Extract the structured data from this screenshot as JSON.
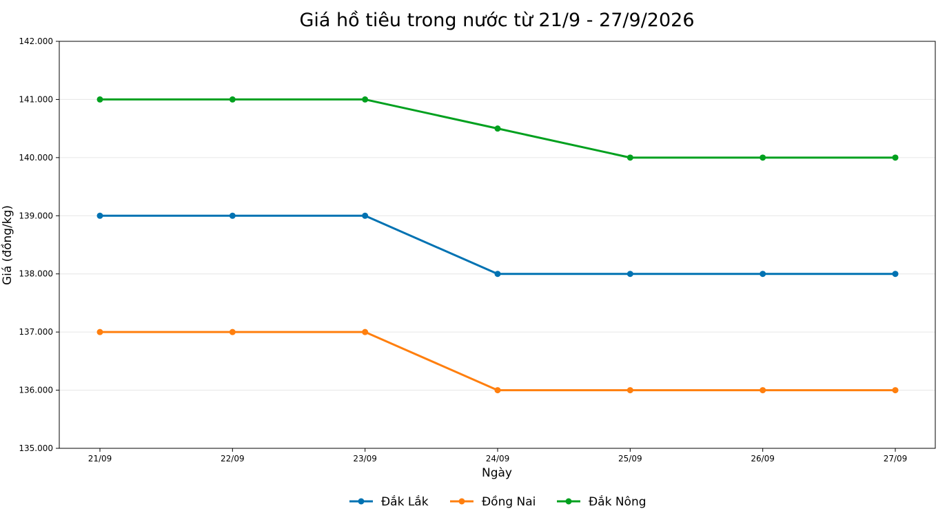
{
  "chart_data": {
    "type": "line",
    "title": "Giá hồ tiêu trong nước từ 21/9 - 27/9/2026",
    "xlabel": "Ngày",
    "ylabel": "Giá (đồng/kg)",
    "categories": [
      "21/09",
      "22/09",
      "23/09",
      "24/09",
      "25/09",
      "26/09",
      "27/09"
    ],
    "ylim": [
      135000,
      142000
    ],
    "yticks": [
      135000,
      136000,
      137000,
      138000,
      139000,
      140000,
      141000,
      142000
    ],
    "ytick_labels": [
      "135.000",
      "136.000",
      "137.000",
      "138.000",
      "139.000",
      "140.000",
      "141.000",
      "142.000"
    ],
    "grid": "horizontal",
    "legend_position": "bottom-center",
    "series": [
      {
        "name": "Đắk Lắk",
        "color": "#0072b2",
        "marker": "circle",
        "values": [
          139000,
          139000,
          139000,
          138000,
          138000,
          138000,
          138000
        ]
      },
      {
        "name": "Đồng Nai",
        "color": "#ff7f0e",
        "marker": "circle",
        "values": [
          137000,
          137000,
          137000,
          136000,
          136000,
          136000,
          136000
        ]
      },
      {
        "name": "Đắk Nông",
        "color": "#00a01e",
        "marker": "circle",
        "values": [
          141000,
          141000,
          141000,
          140500,
          140000,
          140000,
          140000
        ]
      }
    ]
  }
}
